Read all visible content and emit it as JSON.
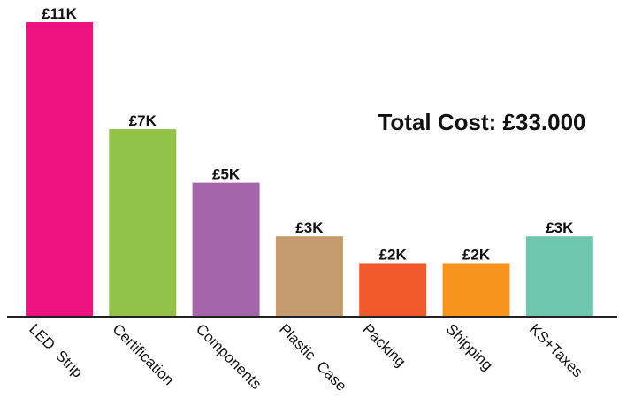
{
  "chart_data": {
    "type": "bar",
    "title": "",
    "xlabel": "",
    "ylabel": "",
    "ylim": [
      0,
      11
    ],
    "grid": false,
    "annotation": "Total Cost: £33.000",
    "categories": [
      "LED  Strip",
      "Certification",
      "Components",
      "Plastic  Case",
      "Packing",
      "Shipping",
      "KS+Taxes"
    ],
    "values": [
      11,
      7,
      5,
      3,
      2,
      2,
      3
    ],
    "data_labels": [
      "£11K",
      "£7K",
      "£5K",
      "£3K",
      "£2K",
      "£2K",
      "£3K"
    ],
    "colors": [
      "#ec1280",
      "#93c24a",
      "#a565ab",
      "#c59a6c",
      "#f15a2d",
      "#f7941e",
      "#6ec7ae"
    ],
    "axis_color": "#222222"
  }
}
